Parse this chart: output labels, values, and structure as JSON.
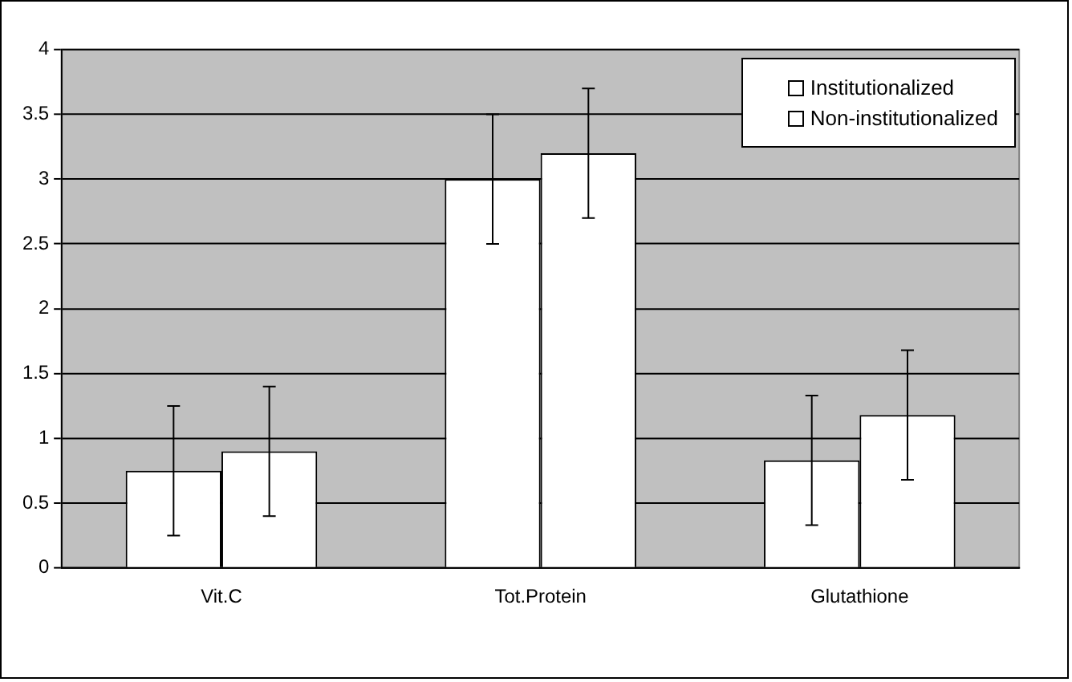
{
  "chart_data": {
    "type": "bar",
    "categories": [
      "Vit.C",
      "Tot.Protein",
      "Glutathione"
    ],
    "series": [
      {
        "name": "Institutionalized",
        "color": "#ffffff",
        "values": [
          0.75,
          3.0,
          0.83
        ],
        "errors": [
          0.5,
          0.5,
          0.5
        ]
      },
      {
        "name": "Non-institutionalized",
        "color": "#ffffff",
        "values": [
          0.9,
          3.2,
          1.18
        ],
        "errors": [
          0.5,
          0.5,
          0.5
        ]
      }
    ],
    "ylim": [
      0,
      4
    ],
    "yticks": [
      0,
      0.5,
      1,
      1.5,
      2,
      2.5,
      3,
      3.5,
      4
    ],
    "grid": "y",
    "legend": "top right"
  }
}
